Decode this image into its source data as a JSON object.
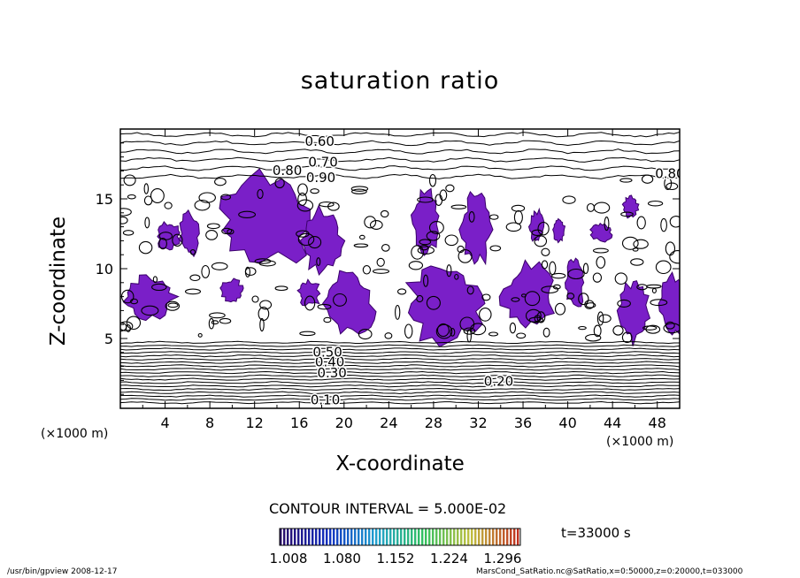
{
  "chart_data": {
    "type": "heatmap",
    "title": "saturation ratio",
    "xlabel": "X-coordinate",
    "ylabel": "Z-coordinate",
    "x_unit": "(×1000 m)",
    "y_unit": "(×1000 m)",
    "xlim": [
      0,
      50
    ],
    "ylim": [
      0,
      20
    ],
    "x_ticks": [
      4,
      8,
      12,
      16,
      20,
      24,
      28,
      32,
      36,
      40,
      44,
      48
    ],
    "y_ticks": [
      5,
      10,
      15
    ],
    "contour_labels": [
      "0.60",
      "0.70",
      "0.80",
      "0.90",
      "0.80",
      "0.20",
      "0.10",
      "0.30",
      "0.40",
      "0.50"
    ],
    "contour_interval": "CONTOUR INTERVAL = 5.000E-02",
    "colorbar": {
      "ticks": [
        "1.008",
        "1.080",
        "1.152",
        "1.224",
        "1.296"
      ],
      "colors": [
        "#2a0a6a",
        "#1030c0",
        "#20a0d0",
        "#30c060",
        "#c0c040",
        "#c03020"
      ]
    },
    "fill_color": "#7a1fc8",
    "time": "t=33000 s"
  },
  "footer": {
    "left": "/usr/bin/gpview   2008-12-17",
    "right": "MarsCond_SatRatio.nc@SatRatio,x=0:50000,z=0:20000,t=033000"
  }
}
